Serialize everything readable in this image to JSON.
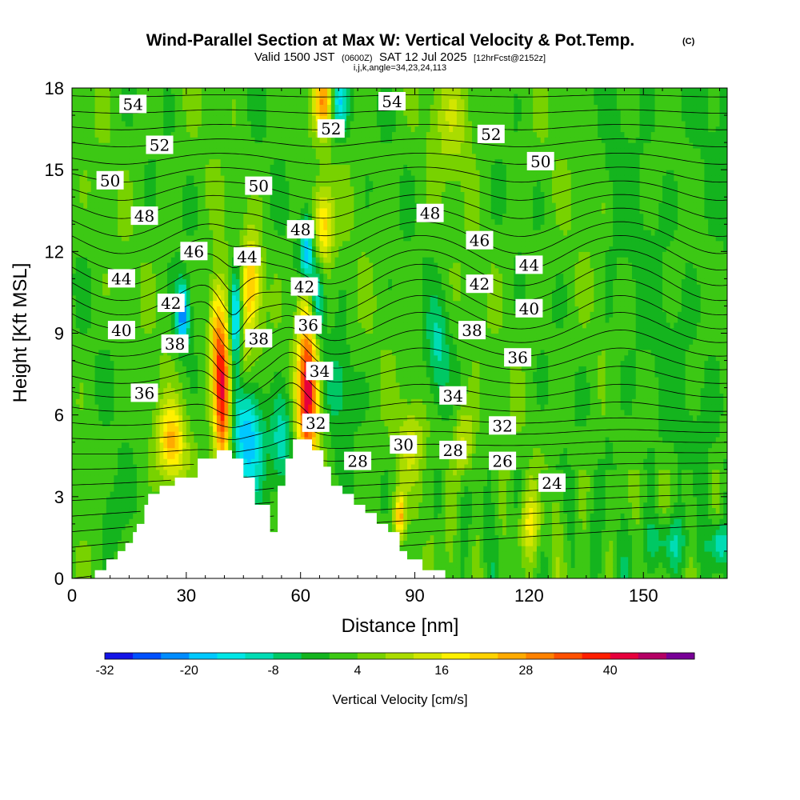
{
  "title": {
    "main": "Wind-Parallel Section at Max W: Vertical Velocity & Pot.Temp.",
    "copyright": "(C)",
    "subtitle_valid": "Valid 1500 JST",
    "subtitle_utc": "(0600Z)",
    "subtitle_date": "SAT 12 Jul 2025",
    "subtitle_run": "[12hrFcst@2152z]",
    "subtitle_index": "i,j,k,angle=34,23,24,113"
  },
  "colors": {
    "terrain": "#ffffff",
    "theta_contour": "#000000"
  },
  "chart_data": {
    "type": "heatmap",
    "xlabel": "Distance [nm]",
    "ylabel": "Height [Kft MSL]",
    "xlim": [
      0,
      172
    ],
    "ylim": [
      0,
      18
    ],
    "x_ticks": [
      "0",
      "30",
      "60",
      "90",
      "120",
      "150"
    ],
    "y_ticks": [
      "0",
      "3",
      "6",
      "9",
      "12",
      "15",
      "18"
    ],
    "colorbar": {
      "title": "Vertical Velocity [cm/s]",
      "tick_labels": [
        "-32",
        "-20",
        "-8",
        "4",
        "16",
        "28",
        "40"
      ],
      "levels": [
        -32,
        -28,
        -24,
        -20,
        -16,
        -12,
        -8,
        -4,
        0,
        4,
        8,
        12,
        16,
        20,
        24,
        28,
        32,
        36,
        40,
        44,
        48
      ],
      "colors": [
        "#1414e6",
        "#0050ff",
        "#008cff",
        "#00c8ff",
        "#00e6e6",
        "#00dcb4",
        "#00c864",
        "#14b41e",
        "#3cc814",
        "#78d200",
        "#aadc00",
        "#d2e600",
        "#fff000",
        "#ffd200",
        "#ffaa00",
        "#ff8200",
        "#ff5000",
        "#ff1e00",
        "#e6003c",
        "#b40064",
        "#780096"
      ]
    },
    "terrain_profile": {
      "x": [
        0,
        6,
        6,
        9,
        9,
        12,
        12,
        14,
        14,
        16,
        16,
        17,
        17,
        19,
        19,
        20,
        20,
        23,
        23,
        27,
        27,
        33,
        33,
        38,
        38,
        42,
        42,
        45,
        45,
        48,
        48,
        52,
        52,
        54,
        54,
        56,
        56,
        58,
        58,
        63,
        63,
        66,
        66,
        68,
        68,
        71,
        71,
        74,
        74,
        77,
        77,
        80,
        80,
        83,
        83,
        86,
        86,
        88,
        88,
        92,
        92,
        98,
        98,
        104,
        104,
        172
      ],
      "height_kft": [
        0,
        0,
        0.3,
        0.3,
        0.7,
        0.7,
        1,
        1,
        1.3,
        1.3,
        1.7,
        1.7,
        2,
        2,
        2.7,
        2.7,
        3.1,
        3.1,
        3.4,
        3.4,
        3.7,
        3.7,
        4.4,
        4.4,
        4.7,
        4.7,
        4.4,
        4.4,
        3.7,
        3.7,
        2.7,
        2.7,
        1.7,
        1.7,
        3.4,
        3.4,
        4.4,
        4.4,
        5.1,
        5.1,
        4.7,
        4.7,
        4.1,
        4.1,
        3.4,
        3.4,
        3.1,
        3.1,
        2.7,
        2.7,
        2.4,
        2.4,
        2,
        2,
        1.7,
        1.7,
        1,
        1,
        0.7,
        0.7,
        0.3,
        0.3,
        0,
        0,
        0,
        0
      ]
    },
    "theta_contour_levels": [
      22,
      23,
      24,
      25,
      26,
      27,
      28,
      29,
      30,
      31,
      32,
      33,
      34,
      35,
      36,
      37,
      38,
      39,
      40,
      41,
      42,
      43,
      44,
      45,
      46,
      47,
      48,
      49,
      50,
      51,
      52,
      53,
      54,
      55
    ],
    "contour_labels": [
      {
        "text": "54",
        "x": 16,
        "y": 17.4
      },
      {
        "text": "52",
        "x": 23,
        "y": 15.9
      },
      {
        "text": "50",
        "x": 10,
        "y": 14.6
      },
      {
        "text": "48",
        "x": 19,
        "y": 13.3
      },
      {
        "text": "46",
        "x": 32,
        "y": 12.0
      },
      {
        "text": "44",
        "x": 13,
        "y": 11.0
      },
      {
        "text": "42",
        "x": 26,
        "y": 10.1
      },
      {
        "text": "40",
        "x": 13,
        "y": 9.1
      },
      {
        "text": "38",
        "x": 27,
        "y": 8.6
      },
      {
        "text": "36",
        "x": 19,
        "y": 6.8
      },
      {
        "text": "54",
        "x": 84,
        "y": 17.5
      },
      {
        "text": "52",
        "x": 68,
        "y": 16.5
      },
      {
        "text": "50",
        "x": 49,
        "y": 14.4
      },
      {
        "text": "48",
        "x": 60,
        "y": 12.8
      },
      {
        "text": "44",
        "x": 46,
        "y": 11.8
      },
      {
        "text": "42",
        "x": 61,
        "y": 10.7
      },
      {
        "text": "38",
        "x": 49,
        "y": 8.8
      },
      {
        "text": "36",
        "x": 62,
        "y": 9.3
      },
      {
        "text": "34",
        "x": 65,
        "y": 7.6
      },
      {
        "text": "32",
        "x": 64,
        "y": 5.7
      },
      {
        "text": "28",
        "x": 75,
        "y": 4.3
      },
      {
        "text": "30",
        "x": 87,
        "y": 4.9
      },
      {
        "text": "48",
        "x": 94,
        "y": 13.4
      },
      {
        "text": "46",
        "x": 107,
        "y": 12.4
      },
      {
        "text": "44",
        "x": 120,
        "y": 11.5
      },
      {
        "text": "42",
        "x": 107,
        "y": 10.8
      },
      {
        "text": "40",
        "x": 120,
        "y": 9.9
      },
      {
        "text": "38",
        "x": 105,
        "y": 9.1
      },
      {
        "text": "36",
        "x": 117,
        "y": 8.1
      },
      {
        "text": "34",
        "x": 100,
        "y": 6.7
      },
      {
        "text": "32",
        "x": 113,
        "y": 5.6
      },
      {
        "text": "28",
        "x": 100,
        "y": 4.7
      },
      {
        "text": "26",
        "x": 113,
        "y": 4.3
      },
      {
        "text": "24",
        "x": 126,
        "y": 3.5
      },
      {
        "text": "52",
        "x": 110,
        "y": 16.3
      },
      {
        "text": "50",
        "x": 123,
        "y": 15.3
      }
    ],
    "w_features": [
      {
        "x": 39.5,
        "y": 6.8,
        "w": 40,
        "sx": 1.6,
        "sy": 2.2
      },
      {
        "x": 37.5,
        "y": 9.2,
        "w": 14,
        "sx": 1.2,
        "sy": 1.4
      },
      {
        "x": 62,
        "y": 6.8,
        "w": 40,
        "sx": 2.0,
        "sy": 2.0
      },
      {
        "x": 61,
        "y": 10.5,
        "w": 14,
        "sx": 1.3,
        "sy": 1.2
      },
      {
        "x": 43,
        "y": 9.6,
        "w": -26,
        "sx": 1.2,
        "sy": 1.3
      },
      {
        "x": 29,
        "y": 9.7,
        "w": -26,
        "sx": 1.2,
        "sy": 0.8
      },
      {
        "x": 61.5,
        "y": 11.8,
        "w": -26,
        "sx": 1.3,
        "sy": 1.0
      },
      {
        "x": 64.5,
        "y": 10.2,
        "w": -18,
        "sx": 1.2,
        "sy": 1.0
      },
      {
        "x": 46,
        "y": 5.2,
        "w": -20,
        "sx": 3.0,
        "sy": 1.5
      },
      {
        "x": 55,
        "y": 5.0,
        "w": -14,
        "sx": 2.0,
        "sy": 1.2
      },
      {
        "x": 26,
        "y": 5.0,
        "w": 22,
        "sx": 2.5,
        "sy": 1.0
      },
      {
        "x": 47,
        "y": 10.8,
        "w": 22,
        "sx": 1.8,
        "sy": 1.2
      },
      {
        "x": 45,
        "y": 8.2,
        "w": 10,
        "sx": 1.5,
        "sy": 1.2
      },
      {
        "x": 66,
        "y": 13.0,
        "w": 20,
        "sx": 1.8,
        "sy": 1.0
      },
      {
        "x": 66,
        "y": 17.5,
        "w": 24,
        "sx": 1.8,
        "sy": 0.8
      },
      {
        "x": 70,
        "y": 17.5,
        "w": -18,
        "sx": 1.6,
        "sy": 0.8
      },
      {
        "x": 70,
        "y": 7.0,
        "w": -8,
        "sx": 2.5,
        "sy": 1.2
      },
      {
        "x": 86,
        "y": 2.3,
        "w": 24,
        "sx": 1.0,
        "sy": 0.6
      },
      {
        "x": 89,
        "y": 5.0,
        "w": 10,
        "sx": 2.5,
        "sy": 1.0
      },
      {
        "x": 100,
        "y": 17.0,
        "w": 8,
        "sx": 4.0,
        "sy": 1.5
      },
      {
        "x": 103,
        "y": 5.0,
        "w": 12,
        "sx": 2.0,
        "sy": 1.0
      },
      {
        "x": 120,
        "y": 2.0,
        "w": 12,
        "sx": 2.0,
        "sy": 0.8
      },
      {
        "x": 156,
        "y": 1.3,
        "w": -10,
        "sx": 5.0,
        "sy": 0.7
      },
      {
        "x": 170,
        "y": 1.3,
        "w": -14,
        "sx": 1.5,
        "sy": 0.5
      },
      {
        "x": 96,
        "y": 8.4,
        "w": -10,
        "sx": 2.0,
        "sy": 1.3
      },
      {
        "x": 10,
        "y": 2.0,
        "w": -6,
        "sx": 2.0,
        "sy": 1.0
      }
    ]
  }
}
